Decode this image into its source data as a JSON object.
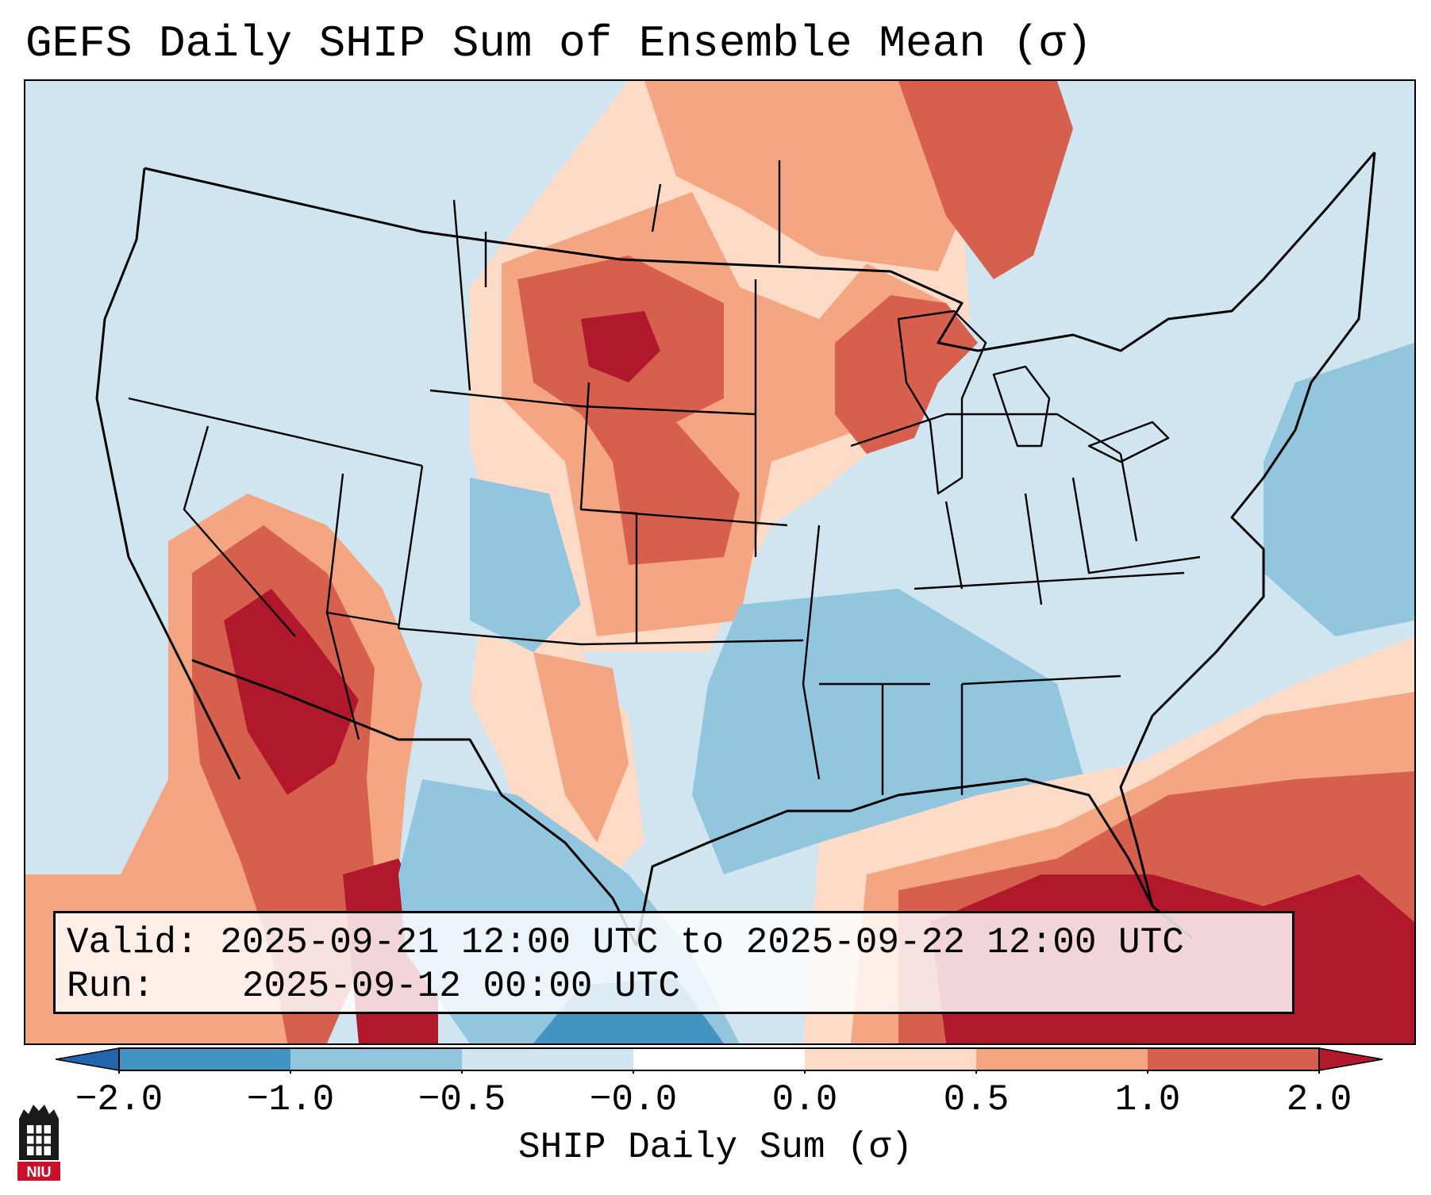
{
  "title": "GEFS Daily SHIP Sum of Ensemble Mean (σ)",
  "info": {
    "valid_label": "Valid:",
    "valid_value": "2025-09-21 12:00 UTC to 2025-09-22 12:00 UTC",
    "run_label": "Run:",
    "run_value": "2025-09-12 00:00 UTC"
  },
  "colorbar": {
    "label": "SHIP Daily Sum (σ)",
    "tick_labels": [
      "−2.0",
      "−1.0",
      "−0.5",
      "−0.0",
      "0.0",
      "0.5",
      "1.0",
      "2.0"
    ],
    "bin_colors": [
      "#2166ac",
      "#4393c3",
      "#92c5de",
      "#d1e5f0",
      "#ffffff",
      "#fddbc7",
      "#f4a582",
      "#d6604d",
      "#b2182b"
    ]
  },
  "logo": {
    "text": "NIU"
  }
}
